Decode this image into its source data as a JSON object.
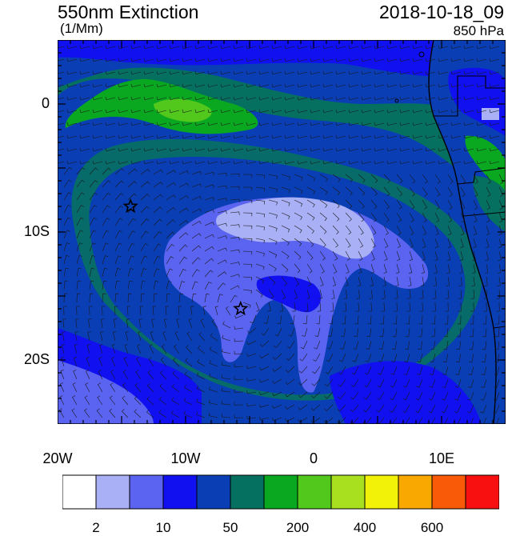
{
  "header": {
    "title": "550nm Extinction",
    "units": "(1/Mm)",
    "datetime": "2018-10-18_09",
    "level": "850 hPa"
  },
  "map": {
    "lon_range": [
      -20,
      15
    ],
    "lat_range": [
      -25,
      5
    ],
    "lon_ticks": [
      {
        "lon": -20,
        "label": "20W"
      },
      {
        "lon": -10,
        "label": "10W"
      },
      {
        "lon": 0,
        "label": "0"
      },
      {
        "lon": 10,
        "label": "10E"
      }
    ],
    "lat_ticks": [
      {
        "lat": 0,
        "label": "0"
      },
      {
        "lat": -10,
        "label": "10S"
      },
      {
        "lat": -20,
        "label": "20S"
      }
    ],
    "markers": [
      {
        "name": "star",
        "lon": -14.3,
        "lat": -8.0
      },
      {
        "name": "star",
        "lon": -5.7,
        "lat": -16.0
      }
    ],
    "wind_barbs": "shown"
  },
  "colorbar": {
    "colors": [
      "#ffffff",
      "#aab0f5",
      "#5b64f0",
      "#1010f0",
      "#0a3eb4",
      "#067060",
      "#0aa820",
      "#52c81c",
      "#a8e020",
      "#f2f208",
      "#f8a800",
      "#f85a08",
      "#f81010"
    ],
    "labels": [
      {
        "index": 1,
        "text": "2"
      },
      {
        "index": 3,
        "text": "10"
      },
      {
        "index": 5,
        "text": "50"
      },
      {
        "index": 7,
        "text": "200"
      },
      {
        "index": 9,
        "text": "400"
      },
      {
        "index": 11,
        "text": "600"
      }
    ]
  }
}
